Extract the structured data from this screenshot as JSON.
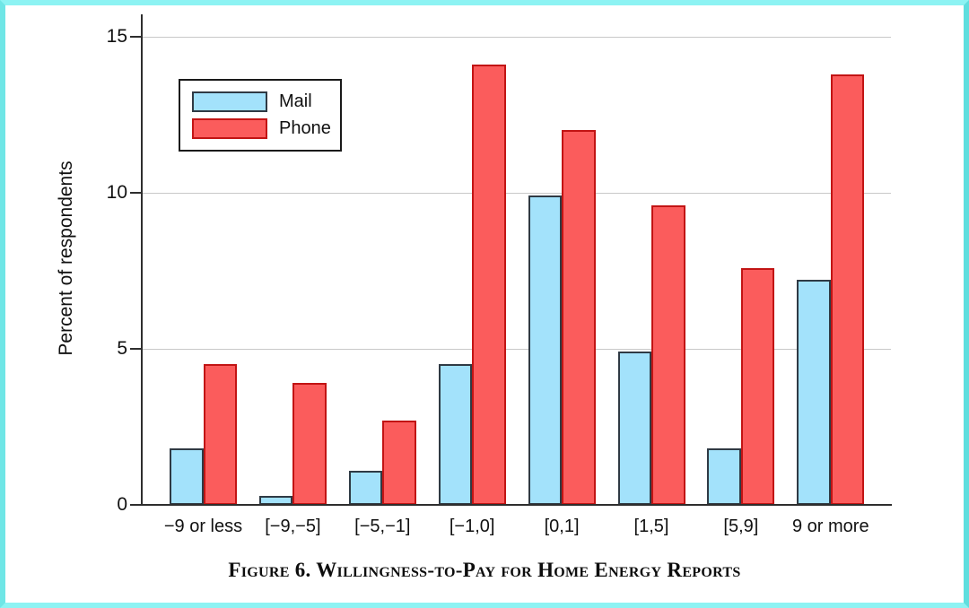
{
  "figure": {
    "caption": "Figure 6. Willingness-to-Pay for Home Energy Reports"
  },
  "chart_data": {
    "type": "bar",
    "title": "",
    "xlabel": "",
    "ylabel": "Percent of respondents",
    "categories": [
      "−9 or less",
      "[−9,−5]",
      "[−5,−1]",
      "[−1,0]",
      "[0,1]",
      "[1,5]",
      "[5,9]",
      "9 or more"
    ],
    "series": [
      {
        "name": "Mail",
        "color": "#a3e2fb",
        "border_color": "#2f3a44",
        "values": [
          1.8,
          0.3,
          1.1,
          4.5,
          9.9,
          4.9,
          1.8,
          7.2
        ]
      },
      {
        "name": "Phone",
        "color": "#fb5c5c",
        "border_color": "#c21414",
        "values": [
          4.5,
          3.9,
          2.7,
          14.1,
          12.0,
          9.6,
          7.6,
          13.8
        ]
      }
    ],
    "ylim": [
      0,
      15
    ],
    "yticks": [
      0,
      5,
      10,
      15
    ],
    "grid": true,
    "legend_position": "upper-left",
    "colors": {
      "frame_border": "#8df3f3",
      "gridline": "#c8c8c8",
      "axis": "#2e2e2e"
    }
  }
}
